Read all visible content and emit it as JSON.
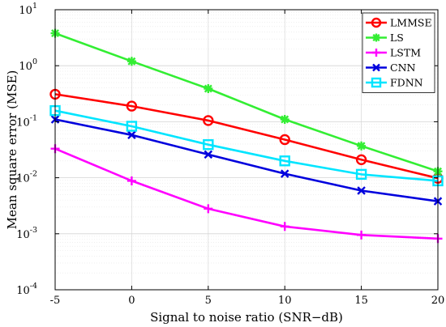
{
  "chart_data": {
    "type": "line",
    "title": "",
    "xlabel": "Signal to noise ratio (SNR−dB)",
    "ylabel": "Mean square error (MSE)",
    "x": [
      -5,
      0,
      5,
      10,
      15,
      20
    ],
    "xlim": [
      -5,
      20
    ],
    "ylim": [
      0.0001,
      10
    ],
    "yscale": "log",
    "grid": true,
    "legend_position": "top-right",
    "x_tick_labels": [
      "-5",
      "0",
      "5",
      "10",
      "15",
      "20"
    ],
    "y_ticks": [
      {
        "exp": -4,
        "base": "10",
        "power": "-4"
      },
      {
        "exp": -3,
        "base": "10",
        "power": "-3"
      },
      {
        "exp": -2,
        "base": "10",
        "power": "-2"
      },
      {
        "exp": -1,
        "base": "10",
        "power": "-1"
      },
      {
        "exp": 0,
        "base": "10",
        "power": "0"
      },
      {
        "exp": 1,
        "base": "10",
        "power": "1"
      }
    ],
    "series": [
      {
        "name": "LMMSE",
        "color": "#ff0000",
        "marker": "circle",
        "values": [
          0.31,
          0.19,
          0.105,
          0.048,
          0.021,
          0.0098
        ]
      },
      {
        "name": "LS",
        "color": "#33ee33",
        "marker": "asterisk",
        "values": [
          3.8,
          1.2,
          0.39,
          0.11,
          0.037,
          0.013
        ]
      },
      {
        "name": "LSTM",
        "color": "#ff00ff",
        "marker": "plus",
        "values": [
          0.033,
          0.0088,
          0.0028,
          0.00135,
          0.00095,
          0.00082
        ]
      },
      {
        "name": "CNN",
        "color": "#0000dd",
        "marker": "x",
        "values": [
          0.11,
          0.058,
          0.026,
          0.0118,
          0.0059,
          0.0038
        ]
      },
      {
        "name": "FDNN",
        "color": "#00e5ff",
        "marker": "square",
        "values": [
          0.158,
          0.083,
          0.039,
          0.02,
          0.0115,
          0.0088
        ]
      }
    ]
  }
}
